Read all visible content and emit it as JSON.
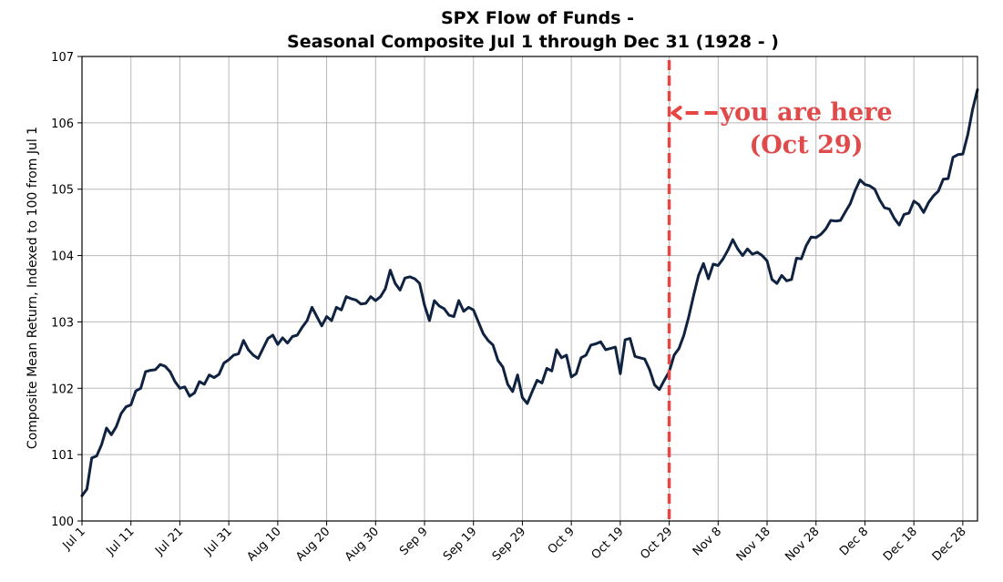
{
  "chart_data": {
    "type": "line",
    "title": "SPX Flow of Funds -",
    "subtitle": "Seasonal Composite Jul 1 through Dec 31 (1928 - )",
    "xlabel": "",
    "ylabel": "Composite Mean Return, Indexed to 100 from Jul 1",
    "ylim": [
      100,
      107
    ],
    "yticks": [
      100,
      101,
      102,
      103,
      104,
      105,
      106,
      107
    ],
    "xticks": [
      "Jul 1",
      "Jul 11",
      "Jul 21",
      "Jul 31",
      "Aug 10",
      "Aug 20",
      "Aug 30",
      "Sep 9",
      "Sep 19",
      "Sep 29",
      "Oct 9",
      "Oct 19",
      "Oct 29",
      "Nov 8",
      "Nov 18",
      "Nov 28",
      "Dec 8",
      "Dec 18",
      "Dec 28"
    ],
    "grid": true,
    "line_color": "#0f2240",
    "marker_color": "#e84545",
    "marker_x": "Oct 29",
    "annotation": [
      "you are here",
      "(Oct 29)"
    ],
    "series": [
      {
        "name": "",
        "points": [
          [
            "Jul 1",
            100.38
          ],
          [
            "Jul 2",
            100.48
          ],
          [
            "Jul 3",
            100.95
          ],
          [
            "Jul 4",
            100.98
          ],
          [
            "Jul 5",
            101.15
          ],
          [
            "Jul 6",
            101.4
          ],
          [
            "Jul 7",
            101.3
          ],
          [
            "Jul 8",
            101.42
          ],
          [
            "Jul 9",
            101.62
          ],
          [
            "Jul 10",
            101.72
          ],
          [
            "Jul 11",
            101.75
          ],
          [
            "Jul 12",
            101.96
          ],
          [
            "Jul 13",
            102.0
          ],
          [
            "Jul 14",
            102.25
          ],
          [
            "Jul 15",
            102.27
          ],
          [
            "Jul 16",
            102.28
          ],
          [
            "Jul 17",
            102.36
          ],
          [
            "Jul 18",
            102.33
          ],
          [
            "Jul 19",
            102.25
          ],
          [
            "Jul 20",
            102.1
          ],
          [
            "Jul 21",
            102.0
          ],
          [
            "Jul 22",
            102.02
          ],
          [
            "Jul 23",
            101.88
          ],
          [
            "Jul 24",
            101.93
          ],
          [
            "Jul 25",
            102.1
          ],
          [
            "Jul 26",
            102.06
          ],
          [
            "Jul 27",
            102.2
          ],
          [
            "Jul 28",
            102.16
          ],
          [
            "Jul 29",
            102.21
          ],
          [
            "Jul 30",
            102.38
          ],
          [
            "Jul 31",
            102.43
          ],
          [
            "Aug 1",
            102.5
          ],
          [
            "Aug 2",
            102.52
          ],
          [
            "Aug 3",
            102.72
          ],
          [
            "Aug 4",
            102.58
          ],
          [
            "Aug 5",
            102.5
          ],
          [
            "Aug 6",
            102.45
          ],
          [
            "Aug 7",
            102.6
          ],
          [
            "Aug 8",
            102.75
          ],
          [
            "Aug 9",
            102.8
          ],
          [
            "Aug 10",
            102.66
          ],
          [
            "Aug 11",
            102.76
          ],
          [
            "Aug 12",
            102.68
          ],
          [
            "Aug 13",
            102.78
          ],
          [
            "Aug 14",
            102.8
          ],
          [
            "Aug 15",
            102.92
          ],
          [
            "Aug 16",
            103.02
          ],
          [
            "Aug 17",
            103.22
          ],
          [
            "Aug 18",
            103.08
          ],
          [
            "Aug 19",
            102.94
          ],
          [
            "Aug 20",
            103.08
          ],
          [
            "Aug 21",
            103.02
          ],
          [
            "Aug 22",
            103.22
          ],
          [
            "Aug 23",
            103.18
          ],
          [
            "Aug 24",
            103.38
          ],
          [
            "Aug 25",
            103.35
          ],
          [
            "Aug 26",
            103.33
          ],
          [
            "Aug 27",
            103.27
          ],
          [
            "Aug 28",
            103.28
          ],
          [
            "Aug 29",
            103.38
          ],
          [
            "Aug 30",
            103.32
          ],
          [
            "Aug 31",
            103.38
          ],
          [
            "Sep 1",
            103.5
          ],
          [
            "Sep 2",
            103.78
          ],
          [
            "Sep 3",
            103.58
          ],
          [
            "Sep 4",
            103.48
          ],
          [
            "Sep 5",
            103.66
          ],
          [
            "Sep 6",
            103.68
          ],
          [
            "Sep 7",
            103.65
          ],
          [
            "Sep 8",
            103.58
          ],
          [
            "Sep 9",
            103.25
          ],
          [
            "Sep 10",
            103.02
          ],
          [
            "Sep 11",
            103.32
          ],
          [
            "Sep 12",
            103.24
          ],
          [
            "Sep 13",
            103.2
          ],
          [
            "Sep 14",
            103.1
          ],
          [
            "Sep 15",
            103.08
          ],
          [
            "Sep 16",
            103.32
          ],
          [
            "Sep 17",
            103.16
          ],
          [
            "Sep 18",
            103.22
          ],
          [
            "Sep 19",
            103.18
          ],
          [
            "Sep 20",
            103.0
          ],
          [
            "Sep 21",
            102.82
          ],
          [
            "Sep 22",
            102.72
          ],
          [
            "Sep 23",
            102.65
          ],
          [
            "Sep 24",
            102.42
          ],
          [
            "Sep 25",
            102.32
          ],
          [
            "Sep 26",
            102.06
          ],
          [
            "Sep 27",
            101.95
          ],
          [
            "Sep 28",
            102.2
          ],
          [
            "Sep 29",
            101.86
          ],
          [
            "Sep 30",
            101.77
          ],
          [
            "Oct 1",
            101.95
          ],
          [
            "Oct 2",
            102.12
          ],
          [
            "Oct 3",
            102.08
          ],
          [
            "Oct 4",
            102.3
          ],
          [
            "Oct 5",
            102.26
          ],
          [
            "Oct 6",
            102.58
          ],
          [
            "Oct 7",
            102.46
          ],
          [
            "Oct 8",
            102.5
          ],
          [
            "Oct 9",
            102.17
          ],
          [
            "Oct 10",
            102.22
          ],
          [
            "Oct 11",
            102.46
          ],
          [
            "Oct 12",
            102.5
          ],
          [
            "Oct 13",
            102.65
          ],
          [
            "Oct 14",
            102.67
          ],
          [
            "Oct 15",
            102.7
          ],
          [
            "Oct 16",
            102.58
          ],
          [
            "Oct 17",
            102.6
          ],
          [
            "Oct 18",
            102.62
          ],
          [
            "Oct 19",
            102.22
          ],
          [
            "Oct 20",
            102.73
          ],
          [
            "Oct 21",
            102.75
          ],
          [
            "Oct 22",
            102.48
          ],
          [
            "Oct 23",
            102.46
          ],
          [
            "Oct 24",
            102.44
          ],
          [
            "Oct 25",
            102.28
          ],
          [
            "Oct 26",
            102.05
          ],
          [
            "Oct 27",
            101.98
          ],
          [
            "Oct 28",
            102.12
          ],
          [
            "Oct 29",
            102.25
          ],
          [
            "Oct 30",
            102.5
          ],
          [
            "Oct 31",
            102.6
          ],
          [
            "Nov 1",
            102.8
          ],
          [
            "Nov 2",
            103.08
          ],
          [
            "Nov 3",
            103.4
          ],
          [
            "Nov 4",
            103.7
          ],
          [
            "Nov 5",
            103.88
          ],
          [
            "Nov 6",
            103.65
          ],
          [
            "Nov 7",
            103.87
          ],
          [
            "Nov 8",
            103.85
          ],
          [
            "Nov 9",
            103.95
          ],
          [
            "Nov 10",
            104.08
          ],
          [
            "Nov 11",
            104.24
          ],
          [
            "Nov 12",
            104.1
          ],
          [
            "Nov 13",
            104.0
          ],
          [
            "Nov 14",
            104.1
          ],
          [
            "Nov 15",
            104.02
          ],
          [
            "Nov 16",
            104.05
          ],
          [
            "Nov 17",
            104.0
          ],
          [
            "Nov 18",
            103.92
          ],
          [
            "Nov 19",
            103.64
          ],
          [
            "Nov 20",
            103.58
          ],
          [
            "Nov 21",
            103.7
          ],
          [
            "Nov 22",
            103.62
          ],
          [
            "Nov 23",
            103.64
          ],
          [
            "Nov 24",
            103.96
          ],
          [
            "Nov 25",
            103.95
          ],
          [
            "Nov 26",
            104.15
          ],
          [
            "Nov 27",
            104.28
          ],
          [
            "Nov 28",
            104.27
          ],
          [
            "Nov 29",
            104.32
          ],
          [
            "Nov 30",
            104.4
          ],
          [
            "Dec 1",
            104.53
          ],
          [
            "Dec 2",
            104.52
          ],
          [
            "Dec 3",
            104.53
          ],
          [
            "Dec 4",
            104.66
          ],
          [
            "Dec 5",
            104.78
          ],
          [
            "Dec 6",
            104.98
          ],
          [
            "Dec 7",
            105.14
          ],
          [
            "Dec 8",
            105.07
          ],
          [
            "Dec 9",
            105.05
          ],
          [
            "Dec 10",
            105.0
          ],
          [
            "Dec 11",
            104.84
          ],
          [
            "Dec 12",
            104.72
          ],
          [
            "Dec 13",
            104.7
          ],
          [
            "Dec 14",
            104.56
          ],
          [
            "Dec 15",
            104.46
          ],
          [
            "Dec 16",
            104.62
          ],
          [
            "Dec 17",
            104.64
          ],
          [
            "Dec 18",
            104.82
          ],
          [
            "Dec 19",
            104.77
          ],
          [
            "Dec 20",
            104.65
          ],
          [
            "Dec 21",
            104.8
          ],
          [
            "Dec 22",
            104.9
          ],
          [
            "Dec 23",
            104.97
          ],
          [
            "Dec 24",
            105.15
          ],
          [
            "Dec 25",
            105.16
          ],
          [
            "Dec 26",
            105.48
          ],
          [
            "Dec 27",
            105.52
          ],
          [
            "Dec 28",
            105.53
          ],
          [
            "Dec 29",
            105.82
          ],
          [
            "Dec 30",
            106.2
          ],
          [
            "Dec 31",
            106.5
          ]
        ]
      }
    ]
  }
}
